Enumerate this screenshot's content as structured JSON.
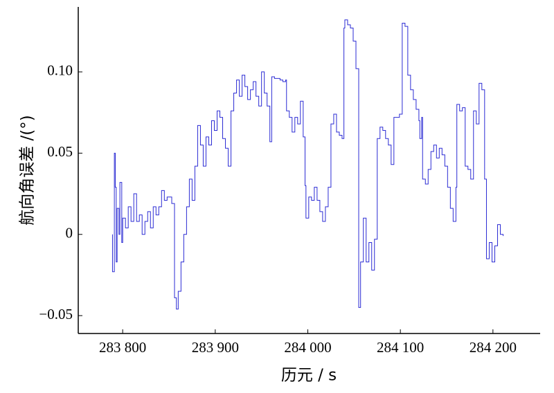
{
  "chart_data": {
    "type": "line",
    "step": "post",
    "color": "#2b2bd4",
    "xlabel": "历元 / s",
    "ylabel": "航向角误差 /(°)",
    "xlim": [
      283752,
      284251
    ],
    "ylim": [
      -0.061,
      0.14
    ],
    "xticks": [
      {
        "value": 283800,
        "label": "283 800"
      },
      {
        "value": 283900,
        "label": "283 900"
      },
      {
        "value": 284000,
        "label": "284 000"
      },
      {
        "value": 284100,
        "label": "284 100"
      },
      {
        "value": 284200,
        "label": "284 200"
      }
    ],
    "yticks": [
      {
        "value": -0.05,
        "label": "−0.05"
      },
      0,
      0.05,
      {
        "value": 0.1,
        "label": "0.10"
      }
    ],
    "x": [
      283789,
      283789,
      283791,
      283792,
      283793,
      283794,
      283796,
      283797,
      283799,
      283800,
      283803,
      283806,
      283809,
      283812,
      283815,
      283818,
      283821,
      283824,
      283827,
      283830,
      283833,
      283836,
      283839,
      283842,
      283845,
      283848,
      283853,
      283856,
      283858,
      283860,
      283863,
      283866,
      283869,
      283872,
      283875,
      283878,
      283881,
      283884,
      283887,
      283890,
      283893,
      283896,
      283899,
      283902,
      283905,
      283908,
      283911,
      283914,
      283917,
      283920,
      283923,
      283926,
      283929,
      283932,
      283935,
      283938,
      283941,
      283944,
      283947,
      283950,
      283953,
      283956,
      283959,
      283961,
      283964,
      283967,
      283970,
      283973,
      283976,
      283977,
      283980,
      283983,
      283986,
      283989,
      283992,
      283995,
      283997,
      283998,
      284001,
      284004,
      284007,
      284010,
      284013,
      284016,
      284019,
      284022,
      284025,
      284028,
      284031,
      284034,
      284037,
      284039,
      284040,
      284043,
      284046,
      284049,
      284052,
      284055,
      284057,
      284060,
      284063,
      284066,
      284069,
      284072,
      284075,
      284078,
      284081,
      284084,
      284087,
      284090,
      284093,
      284096,
      284099,
      284102,
      284105,
      284108,
      284111,
      284114,
      284117,
      284120,
      284121,
      284123,
      284124,
      284127,
      284130,
      284133,
      284136,
      284139,
      284142,
      284145,
      284148,
      284151,
      284154,
      284157,
      284160,
      284161,
      284164,
      284167,
      284170,
      284173,
      284176,
      284179,
      284182,
      284185,
      284188,
      284191,
      284193,
      284196,
      284199,
      284202,
      284205,
      284208,
      284211
    ],
    "values": [
      0.0,
      -0.023,
      0.05,
      0.029,
      -0.017,
      0.016,
      0.0,
      0.032,
      -0.005,
      0.01,
      0.004,
      0.017,
      0.008,
      0.025,
      0.008,
      0.012,
      0.0,
      0.008,
      0.014,
      0.004,
      0.017,
      0.012,
      0.017,
      0.027,
      0.021,
      0.023,
      0.019,
      -0.039,
      -0.046,
      -0.035,
      -0.017,
      0.0,
      0.017,
      0.034,
      0.021,
      0.042,
      0.067,
      0.055,
      0.042,
      0.06,
      0.055,
      0.07,
      0.064,
      0.076,
      0.072,
      0.059,
      0.053,
      0.042,
      0.076,
      0.087,
      0.095,
      0.085,
      0.098,
      0.091,
      0.083,
      0.089,
      0.094,
      0.085,
      0.079,
      0.1,
      0.087,
      0.079,
      0.057,
      0.097,
      0.096,
      0.096,
      0.095,
      0.094,
      0.095,
      0.076,
      0.072,
      0.063,
      0.072,
      0.068,
      0.082,
      0.06,
      0.03,
      0.01,
      0.023,
      0.021,
      0.029,
      0.021,
      0.014,
      0.008,
      0.017,
      0.029,
      0.068,
      0.074,
      0.063,
      0.061,
      0.059,
      0.127,
      0.132,
      0.129,
      0.127,
      0.119,
      0.102,
      -0.045,
      -0.017,
      0.01,
      -0.017,
      -0.005,
      -0.022,
      -0.003,
      0.059,
      0.066,
      0.064,
      0.059,
      0.055,
      0.043,
      0.072,
      0.072,
      0.074,
      0.13,
      0.128,
      0.098,
      0.089,
      0.083,
      0.077,
      0.07,
      0.059,
      0.072,
      0.034,
      0.031,
      0.04,
      0.051,
      0.055,
      0.047,
      0.053,
      0.049,
      0.042,
      0.029,
      0.016,
      0.008,
      0.029,
      0.08,
      0.076,
      0.078,
      0.042,
      0.04,
      0.034,
      0.076,
      0.068,
      0.093,
      0.089,
      0.034,
      -0.015,
      -0.005,
      -0.017,
      -0.007,
      0.006,
      0.0,
      -0.001
    ]
  }
}
